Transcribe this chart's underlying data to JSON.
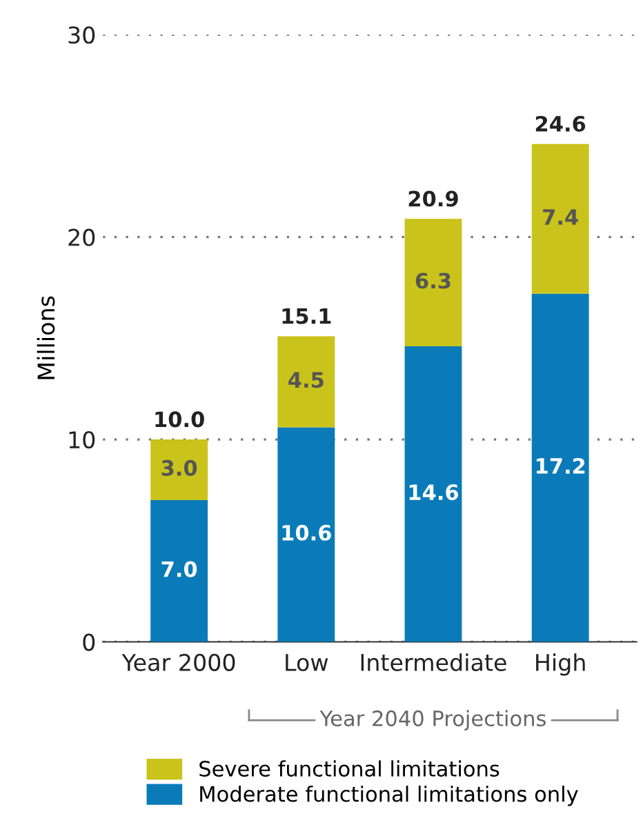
{
  "chart_data": {
    "type": "bar",
    "stacked": true,
    "ylabel": "Millions",
    "categories": [
      "Year 2000",
      "Low",
      "Intermediate",
      "High"
    ],
    "series": [
      {
        "name": "Moderate functional limitations only",
        "color": "#0a7bb8",
        "values": [
          7.0,
          10.6,
          14.6,
          17.2
        ],
        "value_labels": [
          "7.0",
          "10.6",
          "14.6",
          "17.2"
        ]
      },
      {
        "name": "Severe functional limitations",
        "color": "#c9c31b",
        "values": [
          3.0,
          4.5,
          6.3,
          7.4
        ],
        "value_labels": [
          "3.0",
          "4.5",
          "6.3",
          "7.4"
        ]
      }
    ],
    "totals": [
      "10.0",
      "15.1",
      "20.9",
      "24.6"
    ],
    "ylim": [
      0,
      30
    ],
    "yticks": [
      0,
      10,
      20,
      30
    ],
    "grid": "y",
    "legend": "bottom",
    "annotations": [
      "Year 2040 Projections"
    ]
  }
}
